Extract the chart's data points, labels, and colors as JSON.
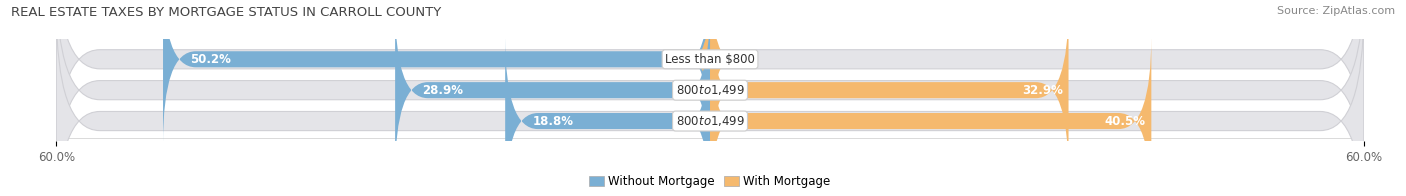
{
  "title": "REAL ESTATE TAXES BY MORTGAGE STATUS IN CARROLL COUNTY",
  "source": "Source: ZipAtlas.com",
  "bars": [
    {
      "label": "Less than $800",
      "without_mortgage": 50.2,
      "with_mortgage": 0.2
    },
    {
      "label": "$800 to $1,499",
      "without_mortgage": 28.9,
      "with_mortgage": 32.9
    },
    {
      "label": "$800 to $1,499",
      "without_mortgage": 18.8,
      "with_mortgage": 40.5
    }
  ],
  "x_min": -60.0,
  "x_max": 60.0,
  "color_without": "#7aafd4",
  "color_with": "#f5b96e",
  "color_without_light": "#b8d4e8",
  "color_with_light": "#fad9a8",
  "bar_height": 0.62,
  "background_bar_color": "#e4e4e8",
  "background_bar_gradient_top": "#f0f0f2",
  "legend_label_without": "Without Mortgage",
  "legend_label_with": "With Mortgage",
  "title_fontsize": 9.5,
  "source_fontsize": 8,
  "bar_label_fontsize": 8.5,
  "pct_label_fontsize": 8.5,
  "tick_fontsize": 8.5,
  "x_tick_labels": [
    "60.0%",
    "60.0%"
  ]
}
